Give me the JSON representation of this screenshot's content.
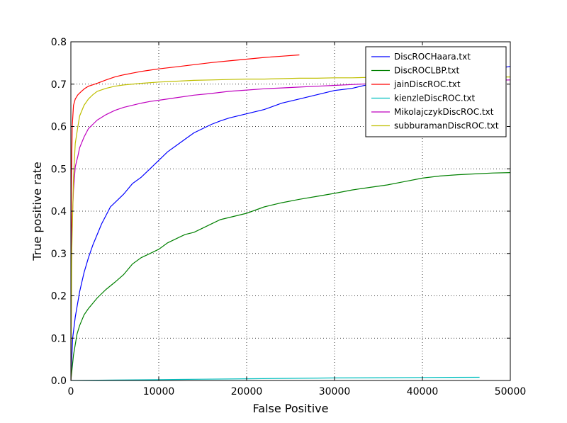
{
  "chart_data": {
    "type": "line",
    "title": "",
    "xlabel": "False Positive",
    "ylabel": "True positive rate",
    "xlim": [
      0,
      50000
    ],
    "ylim": [
      0,
      0.8
    ],
    "xticks": [
      0,
      10000,
      20000,
      30000,
      40000,
      50000
    ],
    "yticks": [
      0.0,
      0.1,
      0.2,
      0.3,
      0.4,
      0.5,
      0.6,
      0.7,
      0.8
    ],
    "xtick_labels": [
      "0",
      "10000",
      "20000",
      "30000",
      "40000",
      "50000"
    ],
    "ytick_labels": [
      "0.0",
      "0.1",
      "0.2",
      "0.3",
      "0.4",
      "0.5",
      "0.6",
      "0.7",
      "0.8"
    ],
    "grid": true,
    "legend_position": "top-right",
    "series": [
      {
        "name": "DiscROCHaara.txt",
        "color": "#0000ff",
        "x": [
          0,
          200,
          500,
          1000,
          1500,
          2000,
          2500,
          3000,
          3500,
          4000,
          4500,
          5000,
          6000,
          7000,
          8000,
          9000,
          10000,
          11000,
          12000,
          13000,
          14000,
          15000,
          16000,
          17000,
          18000,
          19000,
          20000,
          22000,
          24000,
          26000,
          28000,
          30000,
          32000,
          34000,
          36000,
          38000,
          40000,
          42000,
          44000,
          46000,
          48000,
          50000
        ],
        "y": [
          0.0,
          0.1,
          0.15,
          0.21,
          0.255,
          0.29,
          0.32,
          0.345,
          0.37,
          0.39,
          0.41,
          0.42,
          0.44,
          0.465,
          0.48,
          0.5,
          0.52,
          0.54,
          0.555,
          0.57,
          0.585,
          0.595,
          0.605,
          0.613,
          0.62,
          0.625,
          0.63,
          0.64,
          0.655,
          0.665,
          0.675,
          0.685,
          0.69,
          0.7,
          0.705,
          0.71,
          0.715,
          0.72,
          0.725,
          0.73,
          0.735,
          0.742
        ]
      },
      {
        "name": "DiscROCLBP.txt",
        "color": "#008000",
        "x": [
          0,
          300,
          700,
          1000,
          1500,
          2000,
          3000,
          4000,
          5000,
          6000,
          7000,
          8000,
          9000,
          10000,
          11000,
          12000,
          13000,
          14000,
          15000,
          16000,
          17000,
          18000,
          19000,
          20000,
          22000,
          24000,
          26000,
          28000,
          30000,
          32000,
          34000,
          36000,
          38000,
          40000,
          42000,
          44000,
          46000,
          48000,
          50000
        ],
        "y": [
          0.0,
          0.06,
          0.11,
          0.13,
          0.155,
          0.17,
          0.195,
          0.215,
          0.232,
          0.25,
          0.275,
          0.29,
          0.3,
          0.31,
          0.325,
          0.335,
          0.345,
          0.35,
          0.36,
          0.37,
          0.38,
          0.385,
          0.39,
          0.395,
          0.41,
          0.42,
          0.428,
          0.435,
          0.442,
          0.45,
          0.456,
          0.462,
          0.47,
          0.478,
          0.483,
          0.486,
          0.488,
          0.49,
          0.491
        ]
      },
      {
        "name": "jainDiscROC.txt",
        "color": "#ff0000",
        "x": [
          0,
          50,
          150,
          300,
          500,
          800,
          1200,
          1600,
          2000,
          3000,
          4000,
          5000,
          6000,
          7000,
          8000,
          9000,
          10000,
          12000,
          14000,
          16000,
          18000,
          20000,
          22000,
          24000,
          26000
        ],
        "y": [
          0.0,
          0.45,
          0.6,
          0.65,
          0.665,
          0.675,
          0.683,
          0.69,
          0.695,
          0.702,
          0.71,
          0.717,
          0.722,
          0.726,
          0.73,
          0.733,
          0.736,
          0.741,
          0.746,
          0.751,
          0.755,
          0.759,
          0.763,
          0.766,
          0.769
        ]
      },
      {
        "name": "kienzleDiscROC.txt",
        "color": "#00bfbf",
        "x": [
          0,
          5000,
          10000,
          15000,
          20000,
          25000,
          30000,
          35000,
          40000,
          46500
        ],
        "y": [
          0.0,
          0.001,
          0.002,
          0.003,
          0.004,
          0.005,
          0.006,
          0.0065,
          0.007,
          0.0075
        ]
      },
      {
        "name": "MikolajczykDiscROC.txt",
        "color": "#bf00bf",
        "x": [
          0,
          100,
          300,
          500,
          800,
          1000,
          1500,
          2000,
          2500,
          3000,
          4000,
          5000,
          6000,
          7000,
          8000,
          9000,
          10000,
          12000,
          14000,
          16000,
          18000,
          20000,
          22000,
          24000,
          26000,
          28000,
          30000,
          32000,
          34000,
          36000,
          38000,
          40000,
          42000,
          44000,
          46000,
          48000,
          50000
        ],
        "y": [
          0.0,
          0.35,
          0.45,
          0.505,
          0.53,
          0.55,
          0.575,
          0.595,
          0.605,
          0.615,
          0.628,
          0.638,
          0.645,
          0.65,
          0.655,
          0.659,
          0.662,
          0.668,
          0.674,
          0.678,
          0.683,
          0.686,
          0.689,
          0.691,
          0.693,
          0.695,
          0.697,
          0.699,
          0.701,
          0.703,
          0.704,
          0.705,
          0.706,
          0.707,
          0.708,
          0.709,
          0.71
        ]
      },
      {
        "name": "subburamanDiscROC.txt",
        "color": "#bfbf00",
        "x": [
          0,
          100,
          300,
          500,
          800,
          1000,
          1500,
          2000,
          2500,
          3000,
          4000,
          5000,
          6000,
          8000,
          10000,
          12000,
          14000,
          16000,
          18000,
          20000,
          22000,
          24000,
          26000,
          28000,
          30000,
          32000,
          34000,
          36000,
          38000,
          40000,
          42000,
          44000,
          46000,
          48000,
          50000
        ],
        "y": [
          0.0,
          0.3,
          0.48,
          0.56,
          0.6,
          0.625,
          0.65,
          0.665,
          0.675,
          0.683,
          0.69,
          0.695,
          0.698,
          0.702,
          0.705,
          0.707,
          0.709,
          0.71,
          0.711,
          0.712,
          0.712,
          0.713,
          0.714,
          0.714,
          0.715,
          0.715,
          0.716,
          0.716,
          0.716,
          0.717,
          0.717,
          0.717,
          0.717,
          0.717,
          0.717
        ]
      }
    ]
  }
}
